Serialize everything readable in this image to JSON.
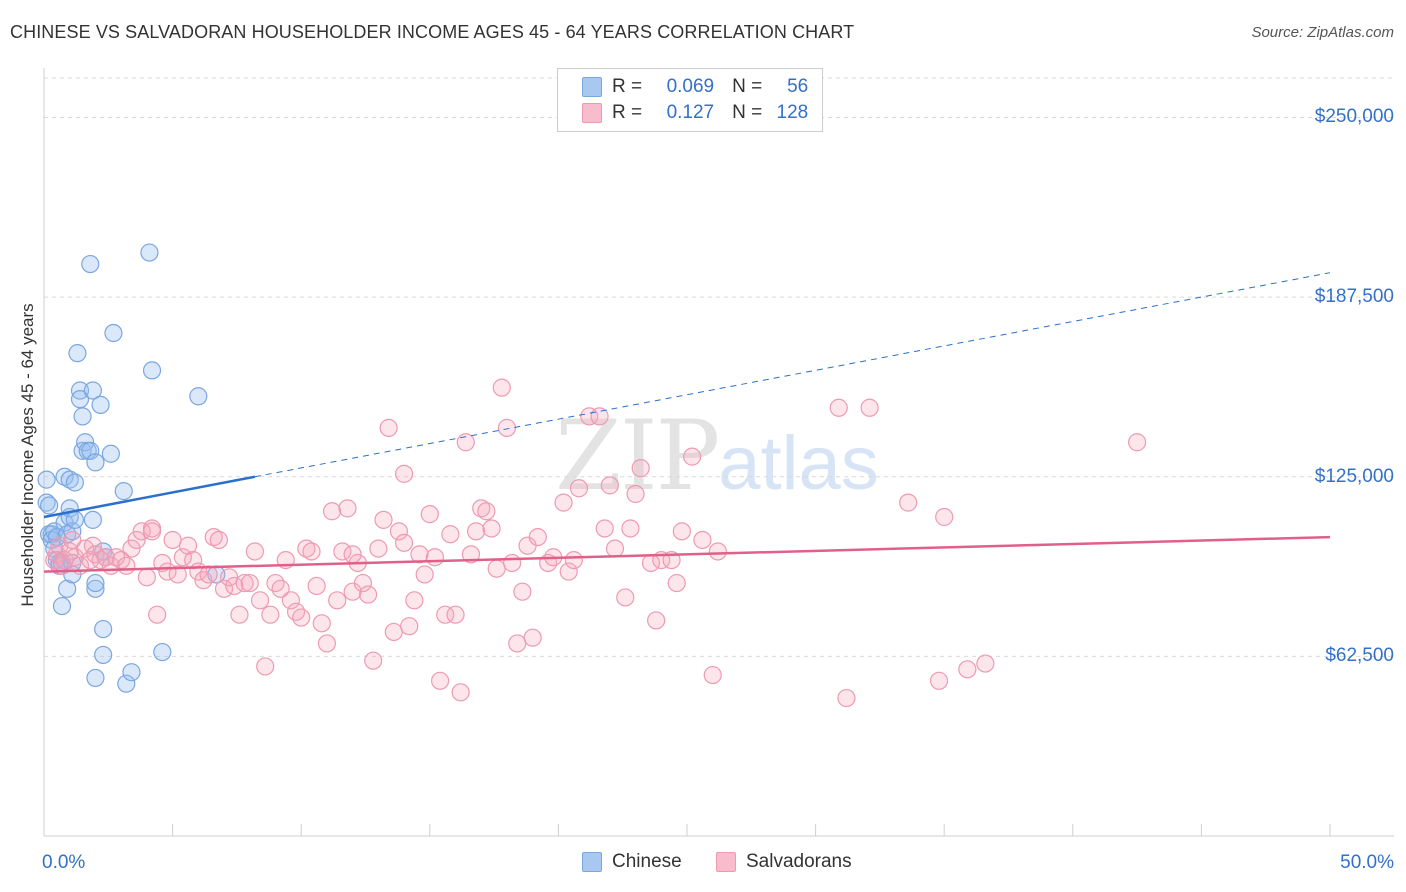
{
  "title": "CHINESE VS SALVADORAN HOUSEHOLDER INCOME AGES 45 - 64 YEARS CORRELATION CHART",
  "source": "Source: ZipAtlas.com",
  "watermark": {
    "zip": "ZIP",
    "atlas": "atlas"
  },
  "legend": {
    "rows": [
      {
        "r_label": "R =",
        "r_value": "0.069",
        "n_label": "N =",
        "n_value": "56",
        "color": "#a9c8f0",
        "border": "#7aa7e0"
      },
      {
        "r_label": "R =",
        "r_value": "0.127",
        "n_label": "N =",
        "n_value": "128",
        "color": "#f8bccc",
        "border": "#ee9ab2"
      }
    ]
  },
  "bottom_legend": [
    {
      "label": "Chinese",
      "color": "#a9c8f0",
      "border": "#7aa7e0"
    },
    {
      "label": "Salvadorans",
      "color": "#f8bccc",
      "border": "#ee9ab2"
    }
  ],
  "chart_data": {
    "type": "scatter",
    "title": "CHINESE VS SALVADORAN HOUSEHOLDER INCOME AGES 45 - 64 YEARS CORRELATION CHART",
    "xlabel": "",
    "ylabel": "Householder Income Ages 45 - 64 years",
    "xlim": [
      0,
      50
    ],
    "ylim": [
      0,
      270000
    ],
    "x_tick_labels": [
      "0.0%",
      "50.0%"
    ],
    "y_ticks": [
      62500,
      125000,
      187500,
      250000
    ],
    "y_tick_labels": [
      "$62,500",
      "$125,000",
      "$187,500",
      "$250,000"
    ],
    "grid": true,
    "legend_position": "top-center",
    "series": [
      {
        "name": "Chinese",
        "color": "#7aa7e0",
        "fill": "rgba(150,190,240,0.35)",
        "trend": {
          "x": [
            0,
            8.2
          ],
          "y": [
            111000,
            125000
          ],
          "dashed_to": [
            50,
            196000
          ],
          "color": "#2b6fcf"
        },
        "points": [
          [
            0.1,
            124000
          ],
          [
            0.1,
            116000
          ],
          [
            0.2,
            115000
          ],
          [
            0.2,
            105000
          ],
          [
            0.3,
            105000
          ],
          [
            0.3,
            103000
          ],
          [
            0.4,
            106000
          ],
          [
            0.4,
            100000
          ],
          [
            0.5,
            96000
          ],
          [
            0.5,
            104000
          ],
          [
            0.6,
            95000
          ],
          [
            0.6,
            94000
          ],
          [
            0.7,
            95000
          ],
          [
            0.7,
            80000
          ],
          [
            0.8,
            125000
          ],
          [
            0.8,
            109000
          ],
          [
            0.9,
            105000
          ],
          [
            0.9,
            86000
          ],
          [
            1.0,
            124000
          ],
          [
            1.0,
            114000
          ],
          [
            1.0,
            111000
          ],
          [
            1.1,
            106000
          ],
          [
            1.1,
            91000
          ],
          [
            1.1,
            95000
          ],
          [
            1.2,
            123000
          ],
          [
            1.3,
            168000
          ],
          [
            1.2,
            110000
          ],
          [
            1.4,
            155000
          ],
          [
            1.4,
            152000
          ],
          [
            1.5,
            134000
          ],
          [
            1.5,
            146000
          ],
          [
            1.6,
            137000
          ],
          [
            1.7,
            134000
          ],
          [
            1.8,
            134000
          ],
          [
            1.9,
            110000
          ],
          [
            1.9,
            155000
          ],
          [
            2.0,
            130000
          ],
          [
            2.0,
            86000
          ],
          [
            2.0,
            88000
          ],
          [
            2.0,
            55000
          ],
          [
            2.2,
            150000
          ],
          [
            2.3,
            72000
          ],
          [
            2.3,
            63000
          ],
          [
            2.3,
            99000
          ],
          [
            2.4,
            97000
          ],
          [
            2.6,
            133000
          ],
          [
            2.7,
            175000
          ],
          [
            3.1,
            120000
          ],
          [
            3.2,
            53000
          ],
          [
            3.4,
            57000
          ],
          [
            4.1,
            203000
          ],
          [
            4.2,
            162000
          ],
          [
            4.6,
            64000
          ],
          [
            6.0,
            153000
          ],
          [
            6.7,
            91000
          ],
          [
            1.8,
            199000
          ]
        ]
      },
      {
        "name": "Salvadorans",
        "color": "#ee9ab2",
        "fill": "rgba(245,170,190,0.30)",
        "trend": {
          "x": [
            0,
            50
          ],
          "y": [
            92000,
            104000
          ],
          "color": "#e0608a"
        },
        "points": [
          [
            0.4,
            96000
          ],
          [
            0.5,
            98000
          ],
          [
            0.6,
            101000
          ],
          [
            0.7,
            94000
          ],
          [
            0.8,
            96000
          ],
          [
            1.0,
            99000
          ],
          [
            1.1,
            103000
          ],
          [
            1.2,
            97000
          ],
          [
            1.4,
            94000
          ],
          [
            1.6,
            100000
          ],
          [
            1.8,
            96000
          ],
          [
            1.9,
            101000
          ],
          [
            2.0,
            98000
          ],
          [
            2.2,
            96000
          ],
          [
            2.4,
            97000
          ],
          [
            2.6,
            94000
          ],
          [
            2.8,
            97000
          ],
          [
            3.0,
            96000
          ],
          [
            3.2,
            94000
          ],
          [
            3.4,
            100000
          ],
          [
            3.6,
            103000
          ],
          [
            3.8,
            106000
          ],
          [
            4.0,
            90000
          ],
          [
            4.2,
            107000
          ],
          [
            4.4,
            77000
          ],
          [
            4.6,
            95000
          ],
          [
            4.8,
            92000
          ],
          [
            5.0,
            103000
          ],
          [
            5.2,
            91000
          ],
          [
            5.4,
            97000
          ],
          [
            5.6,
            101000
          ],
          [
            5.8,
            96000
          ],
          [
            6.0,
            92000
          ],
          [
            6.2,
            89000
          ],
          [
            6.4,
            91000
          ],
          [
            6.6,
            104000
          ],
          [
            6.8,
            103000
          ],
          [
            7.0,
            86000
          ],
          [
            7.2,
            90000
          ],
          [
            7.4,
            87000
          ],
          [
            7.6,
            77000
          ],
          [
            7.8,
            88000
          ],
          [
            8.0,
            88000
          ],
          [
            8.2,
            99000
          ],
          [
            8.4,
            82000
          ],
          [
            8.6,
            59000
          ],
          [
            8.8,
            77000
          ],
          [
            9.0,
            88000
          ],
          [
            9.2,
            86000
          ],
          [
            9.4,
            96000
          ],
          [
            9.6,
            82000
          ],
          [
            9.8,
            78000
          ],
          [
            10.0,
            76000
          ],
          [
            10.2,
            100000
          ],
          [
            10.4,
            99000
          ],
          [
            10.6,
            87000
          ],
          [
            10.8,
            74000
          ],
          [
            11.0,
            67000
          ],
          [
            11.2,
            113000
          ],
          [
            11.4,
            82000
          ],
          [
            11.6,
            99000
          ],
          [
            11.8,
            114000
          ],
          [
            12.0,
            85000
          ],
          [
            12.2,
            95000
          ],
          [
            12.4,
            88000
          ],
          [
            12.6,
            84000
          ],
          [
            12.8,
            61000
          ],
          [
            13.0,
            100000
          ],
          [
            13.2,
            110000
          ],
          [
            13.4,
            142000
          ],
          [
            13.6,
            71000
          ],
          [
            13.8,
            106000
          ],
          [
            14.0,
            102000
          ],
          [
            14.2,
            73000
          ],
          [
            14.4,
            82000
          ],
          [
            14.6,
            98000
          ],
          [
            14.8,
            91000
          ],
          [
            15.0,
            112000
          ],
          [
            15.2,
            97000
          ],
          [
            15.4,
            54000
          ],
          [
            15.6,
            77000
          ],
          [
            15.8,
            105000
          ],
          [
            16.0,
            77000
          ],
          [
            16.2,
            50000
          ],
          [
            16.4,
            137000
          ],
          [
            16.6,
            98000
          ],
          [
            16.8,
            106000
          ],
          [
            17.0,
            114000
          ],
          [
            17.2,
            113000
          ],
          [
            17.4,
            107000
          ],
          [
            17.6,
            93000
          ],
          [
            17.8,
            156000
          ],
          [
            18.0,
            142000
          ],
          [
            18.2,
            95000
          ],
          [
            18.4,
            67000
          ],
          [
            18.6,
            85000
          ],
          [
            18.8,
            101000
          ],
          [
            19.0,
            69000
          ],
          [
            19.2,
            104000
          ],
          [
            19.6,
            95000
          ],
          [
            19.8,
            97000
          ],
          [
            20.2,
            116000
          ],
          [
            20.4,
            92000
          ],
          [
            20.6,
            96000
          ],
          [
            20.8,
            121000
          ],
          [
            21.2,
            146000
          ],
          [
            21.6,
            146000
          ],
          [
            21.8,
            107000
          ],
          [
            22.0,
            122000
          ],
          [
            22.2,
            100000
          ],
          [
            22.6,
            83000
          ],
          [
            22.8,
            107000
          ],
          [
            23.0,
            119000
          ],
          [
            23.2,
            128000
          ],
          [
            23.6,
            95000
          ],
          [
            23.8,
            75000
          ],
          [
            24.0,
            96000
          ],
          [
            24.4,
            96000
          ],
          [
            24.6,
            88000
          ],
          [
            24.8,
            106000
          ],
          [
            25.2,
            132000
          ],
          [
            25.6,
            103000
          ],
          [
            26.0,
            56000
          ],
          [
            26.2,
            99000
          ],
          [
            30.9,
            149000
          ],
          [
            31.2,
            48000
          ],
          [
            32.1,
            149000
          ],
          [
            33.6,
            116000
          ],
          [
            34.8,
            54000
          ],
          [
            35.9,
            58000
          ],
          [
            35.0,
            111000
          ],
          [
            36.6,
            60000
          ],
          [
            42.5,
            137000
          ],
          [
            14.0,
            126000
          ],
          [
            12.0,
            98000
          ],
          [
            4.2,
            106000
          ]
        ]
      }
    ]
  }
}
